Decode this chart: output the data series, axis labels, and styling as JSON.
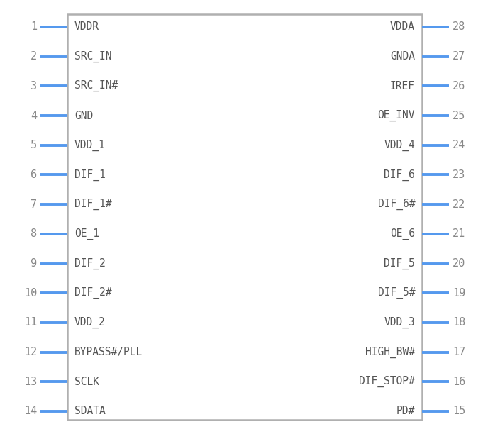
{
  "fig_width": 6.88,
  "fig_height": 6.12,
  "dpi": 100,
  "bg_color": "#ffffff",
  "box_color": "#b0b0b0",
  "pin_color": "#5599ee",
  "text_color": "#555555",
  "num_color": "#888888",
  "left_pins": [
    {
      "num": 1,
      "name": "VDDR"
    },
    {
      "num": 2,
      "name": "SRC_IN"
    },
    {
      "num": 3,
      "name": "SRC_IN#"
    },
    {
      "num": 4,
      "name": "GND"
    },
    {
      "num": 5,
      "name": "VDD_1"
    },
    {
      "num": 6,
      "name": "DIF_1"
    },
    {
      "num": 7,
      "name": "DIF_1#"
    },
    {
      "num": 8,
      "name": "OE_1"
    },
    {
      "num": 9,
      "name": "DIF_2"
    },
    {
      "num": 10,
      "name": "DIF_2#"
    },
    {
      "num": 11,
      "name": "VDD_2"
    },
    {
      "num": 12,
      "name": "BYPASS#/PLL"
    },
    {
      "num": 13,
      "name": "SCLK"
    },
    {
      "num": 14,
      "name": "SDATA"
    }
  ],
  "right_pins": [
    {
      "num": 28,
      "name": "VDDA"
    },
    {
      "num": 27,
      "name": "GNDA"
    },
    {
      "num": 26,
      "name": "IREF"
    },
    {
      "num": 25,
      "name": "OE_INV"
    },
    {
      "num": 24,
      "name": "VDD_4"
    },
    {
      "num": 23,
      "name": "DIF_6"
    },
    {
      "num": 22,
      "name": "DIF_6#"
    },
    {
      "num": 21,
      "name": "OE_6"
    },
    {
      "num": 20,
      "name": "DIF_5"
    },
    {
      "num": 19,
      "name": "DIF_5#"
    },
    {
      "num": 18,
      "name": "VDD_3"
    },
    {
      "num": 17,
      "name": "HIGH_BW#"
    },
    {
      "num": 16,
      "name": "DIF_STOP#"
    },
    {
      "num": 15,
      "name": "PD#"
    }
  ],
  "font_size": 10.5,
  "num_font_size": 11,
  "font_family": "monospace"
}
